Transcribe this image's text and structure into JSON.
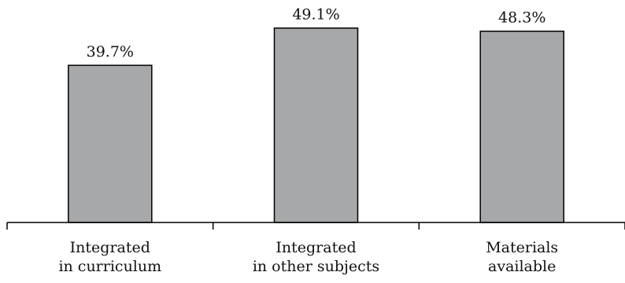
{
  "chart_data": {
    "type": "bar",
    "categories": [
      [
        "Integrated",
        "in curriculum"
      ],
      [
        "Integrated",
        "in other subjects"
      ],
      [
        "Materials",
        "available"
      ]
    ],
    "values": [
      39.7,
      49.1,
      48.3
    ],
    "value_labels": [
      "39.7%",
      "49.1%",
      "48.3%"
    ],
    "ylim": [
      0,
      55
    ],
    "grid": false,
    "legend": "none",
    "bar_color": "#a7a8aa",
    "bar_edge_color": "#000000"
  }
}
